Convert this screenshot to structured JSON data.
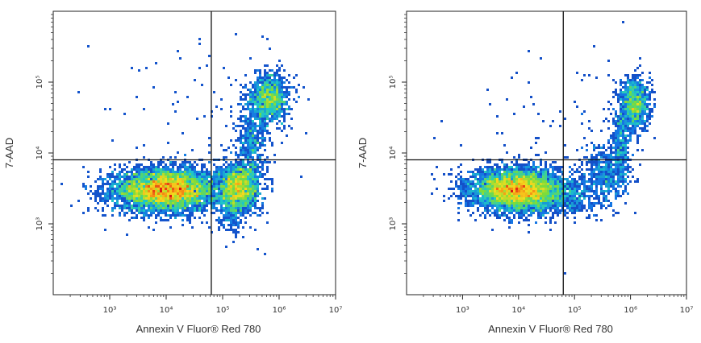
{
  "chart_data": [
    {
      "type": "scatter",
      "plot": "left",
      "xlabel": "Annexin V Fluor® Red 780",
      "ylabel": "7-AAD",
      "x_scale": "log",
      "y_scale": "log",
      "xlim": [
        100,
        10000000
      ],
      "ylim": [
        100,
        1000000
      ],
      "x_ticks": [
        {
          "value": 1000,
          "label": "10³"
        },
        {
          "value": 10000,
          "label": "10⁴"
        },
        {
          "value": 100000,
          "label": "10⁵"
        },
        {
          "value": 1000000,
          "label": "10⁶"
        },
        {
          "value": 10000000,
          "label": "10⁷"
        }
      ],
      "y_ticks": [
        {
          "value": 1000,
          "label": "10³"
        },
        {
          "value": 10000,
          "label": "10⁴"
        },
        {
          "value": 100000,
          "label": "10⁵"
        }
      ],
      "gates": {
        "x": 63000,
        "y": 8000
      },
      "grid": false,
      "populations": [
        {
          "name": "",
          "x": 10000,
          "y": 3000,
          "n": 5200,
          "sx": 0.46,
          "sy": 0.15
        },
        {
          "name": "",
          "x": 200000,
          "y": 3300,
          "n": 1500,
          "sx": 0.18,
          "sy": 0.17
        },
        {
          "name": "",
          "x": 700000,
          "y": 60000,
          "n": 1000,
          "sx": 0.16,
          "sy": 0.17
        },
        {
          "name": "",
          "x": 330000,
          "y": 15000,
          "n": 500,
          "sx": 0.14,
          "sy": 0.36
        },
        {
          "name": "",
          "x": 140000,
          "y": 1800,
          "n": 300,
          "sx": 0.12,
          "sy": 0.2
        },
        {
          "name": "",
          "x": 50000,
          "y": 20000,
          "n": 120,
          "sx": 0.9,
          "sy": 0.7
        }
      ]
    },
    {
      "type": "scatter",
      "plot": "right",
      "xlabel": "Annexin V Fluor® Red 780",
      "ylabel": "7-AAD",
      "x_scale": "log",
      "y_scale": "log",
      "xlim": [
        100,
        10000000
      ],
      "ylim": [
        100,
        1000000
      ],
      "x_ticks": [
        {
          "value": 1000,
          "label": "10³"
        },
        {
          "value": 10000,
          "label": "10⁴"
        },
        {
          "value": 100000,
          "label": "10⁵"
        },
        {
          "value": 1000000,
          "label": "10⁶"
        },
        {
          "value": 10000000,
          "label": "10⁷"
        }
      ],
      "y_ticks": [
        {
          "value": 1000,
          "label": "10³"
        },
        {
          "value": 10000,
          "label": "10⁴"
        },
        {
          "value": 100000,
          "label": "10⁵"
        }
      ],
      "gates": {
        "x": 63000,
        "y": 8000
      },
      "grid": false,
      "populations": [
        {
          "name": "",
          "x": 10000,
          "y": 3000,
          "n": 5200,
          "sx": 0.42,
          "sy": 0.15
        },
        {
          "name": "",
          "x": 350000,
          "y": 5000,
          "n": 500,
          "sx": 0.22,
          "sy": 0.2
        },
        {
          "name": "",
          "x": 1200000,
          "y": 50000,
          "n": 900,
          "sx": 0.13,
          "sy": 0.18
        },
        {
          "name": "",
          "x": 700000,
          "y": 15000,
          "n": 350,
          "sx": 0.1,
          "sy": 0.3
        },
        {
          "name": "",
          "x": 80000,
          "y": 2200,
          "n": 300,
          "sx": 0.3,
          "sy": 0.12
        },
        {
          "name": "",
          "x": 60000,
          "y": 20000,
          "n": 100,
          "sx": 0.9,
          "sy": 0.7
        }
      ]
    }
  ]
}
